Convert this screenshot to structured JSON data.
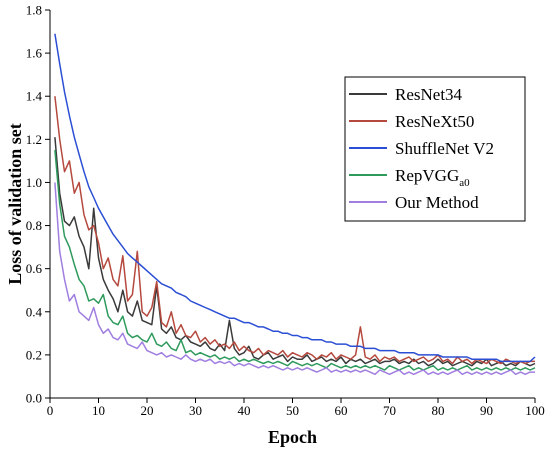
{
  "chart_data": {
    "type": "line",
    "title": "",
    "xlabel": "Epoch",
    "ylabel": "Loss of validation set",
    "xlim": [
      0,
      100
    ],
    "ylim": [
      0,
      1.8
    ],
    "x_ticks": [
      "0",
      "10",
      "20",
      "30",
      "40",
      "50",
      "60",
      "70",
      "80",
      "90",
      "100"
    ],
    "y_ticks": [
      "0.0",
      "0.2",
      "0.4",
      "0.6",
      "0.8",
      "1.0",
      "1.2",
      "1.4",
      "1.6",
      "1.8"
    ],
    "grid": false,
    "legend_position": "right",
    "x": [
      1,
      2,
      3,
      4,
      5,
      6,
      7,
      8,
      9,
      10,
      11,
      12,
      13,
      14,
      15,
      16,
      17,
      18,
      19,
      20,
      21,
      22,
      23,
      24,
      25,
      26,
      27,
      28,
      29,
      30,
      31,
      32,
      33,
      34,
      35,
      36,
      37,
      38,
      39,
      40,
      41,
      42,
      43,
      44,
      45,
      46,
      47,
      48,
      49,
      50,
      51,
      52,
      53,
      54,
      55,
      56,
      57,
      58,
      59,
      60,
      61,
      62,
      63,
      64,
      65,
      66,
      67,
      68,
      69,
      70,
      71,
      72,
      73,
      74,
      75,
      76,
      77,
      78,
      79,
      80,
      81,
      82,
      83,
      84,
      85,
      86,
      87,
      88,
      89,
      90,
      91,
      92,
      93,
      94,
      95,
      96,
      97,
      98,
      99,
      100
    ],
    "series": [
      {
        "name": "ResNet34",
        "label_main": "ResNet34",
        "label_sub": "",
        "color": "#3a3a3a",
        "values": [
          1.21,
          0.95,
          0.82,
          0.8,
          0.84,
          0.75,
          0.7,
          0.6,
          0.88,
          0.65,
          0.55,
          0.5,
          0.46,
          0.4,
          0.5,
          0.4,
          0.38,
          0.45,
          0.36,
          0.35,
          0.34,
          0.52,
          0.32,
          0.3,
          0.33,
          0.28,
          0.27,
          0.29,
          0.26,
          0.25,
          0.24,
          0.26,
          0.23,
          0.22,
          0.25,
          0.22,
          0.36,
          0.23,
          0.2,
          0.21,
          0.24,
          0.19,
          0.18,
          0.2,
          0.21,
          0.18,
          0.19,
          0.2,
          0.17,
          0.19,
          0.18,
          0.18,
          0.2,
          0.17,
          0.18,
          0.19,
          0.17,
          0.18,
          0.17,
          0.19,
          0.16,
          0.18,
          0.17,
          0.18,
          0.16,
          0.17,
          0.18,
          0.16,
          0.17,
          0.17,
          0.18,
          0.16,
          0.17,
          0.16,
          0.18,
          0.16,
          0.17,
          0.15,
          0.16,
          0.18,
          0.16,
          0.17,
          0.15,
          0.16,
          0.17,
          0.16,
          0.15,
          0.17,
          0.16,
          0.18,
          0.15,
          0.16,
          0.17,
          0.15,
          0.16,
          0.15,
          0.17,
          0.16,
          0.15,
          0.16
        ]
      },
      {
        "name": "ResNeXt50",
        "label_main": "ResNeXt50",
        "label_sub": "",
        "color": "#b5493e",
        "values": [
          1.4,
          1.2,
          1.05,
          1.1,
          0.95,
          1.0,
          0.85,
          0.78,
          0.8,
          0.72,
          0.6,
          0.65,
          0.55,
          0.52,
          0.66,
          0.45,
          0.48,
          0.68,
          0.4,
          0.38,
          0.42,
          0.54,
          0.35,
          0.33,
          0.4,
          0.3,
          0.34,
          0.29,
          0.28,
          0.31,
          0.26,
          0.28,
          0.25,
          0.27,
          0.24,
          0.25,
          0.23,
          0.26,
          0.22,
          0.24,
          0.22,
          0.21,
          0.23,
          0.2,
          0.22,
          0.21,
          0.2,
          0.22,
          0.19,
          0.21,
          0.2,
          0.19,
          0.21,
          0.2,
          0.18,
          0.2,
          0.19,
          0.21,
          0.18,
          0.2,
          0.19,
          0.18,
          0.2,
          0.33,
          0.19,
          0.18,
          0.2,
          0.17,
          0.19,
          0.18,
          0.19,
          0.17,
          0.18,
          0.19,
          0.17,
          0.18,
          0.19,
          0.17,
          0.18,
          0.2,
          0.17,
          0.18,
          0.16,
          0.19,
          0.17,
          0.18,
          0.16,
          0.18,
          0.17,
          0.16,
          0.18,
          0.17,
          0.16,
          0.18,
          0.17,
          0.16,
          0.17,
          0.16,
          0.17,
          0.17
        ]
      },
      {
        "name": "ShuffleNet V2",
        "label_main": "ShuffleNet V2",
        "label_sub": "",
        "color": "#2b4fd4",
        "values": [
          1.69,
          1.55,
          1.42,
          1.31,
          1.21,
          1.13,
          1.05,
          0.98,
          0.93,
          0.88,
          0.84,
          0.8,
          0.76,
          0.73,
          0.7,
          0.67,
          0.65,
          0.63,
          0.61,
          0.59,
          0.57,
          0.55,
          0.53,
          0.52,
          0.51,
          0.49,
          0.48,
          0.47,
          0.45,
          0.44,
          0.43,
          0.42,
          0.41,
          0.4,
          0.39,
          0.38,
          0.37,
          0.37,
          0.36,
          0.35,
          0.35,
          0.34,
          0.33,
          0.33,
          0.32,
          0.31,
          0.31,
          0.3,
          0.3,
          0.29,
          0.29,
          0.28,
          0.28,
          0.27,
          0.27,
          0.27,
          0.26,
          0.26,
          0.25,
          0.25,
          0.25,
          0.24,
          0.24,
          0.24,
          0.23,
          0.23,
          0.23,
          0.22,
          0.22,
          0.22,
          0.22,
          0.21,
          0.21,
          0.21,
          0.21,
          0.2,
          0.2,
          0.2,
          0.2,
          0.2,
          0.19,
          0.19,
          0.19,
          0.19,
          0.19,
          0.19,
          0.18,
          0.18,
          0.18,
          0.18,
          0.18,
          0.18,
          0.17,
          0.17,
          0.17,
          0.17,
          0.17,
          0.17,
          0.17,
          0.19
        ]
      },
      {
        "name": "RepVGGa0",
        "label_main": "RepVGG",
        "label_sub": "a0",
        "color": "#2e9a5c",
        "values": [
          1.15,
          0.9,
          0.75,
          0.7,
          0.62,
          0.55,
          0.52,
          0.45,
          0.46,
          0.44,
          0.48,
          0.38,
          0.35,
          0.34,
          0.38,
          0.3,
          0.28,
          0.29,
          0.27,
          0.26,
          0.3,
          0.25,
          0.24,
          0.26,
          0.23,
          0.22,
          0.27,
          0.21,
          0.22,
          0.2,
          0.21,
          0.2,
          0.19,
          0.2,
          0.18,
          0.19,
          0.18,
          0.19,
          0.17,
          0.18,
          0.17,
          0.18,
          0.17,
          0.16,
          0.17,
          0.16,
          0.17,
          0.16,
          0.15,
          0.17,
          0.16,
          0.15,
          0.16,
          0.15,
          0.16,
          0.15,
          0.14,
          0.16,
          0.15,
          0.14,
          0.15,
          0.14,
          0.15,
          0.14,
          0.15,
          0.14,
          0.15,
          0.14,
          0.13,
          0.15,
          0.14,
          0.13,
          0.14,
          0.15,
          0.13,
          0.14,
          0.13,
          0.14,
          0.15,
          0.13,
          0.14,
          0.13,
          0.14,
          0.13,
          0.14,
          0.15,
          0.13,
          0.14,
          0.13,
          0.14,
          0.13,
          0.14,
          0.13,
          0.14,
          0.13,
          0.14,
          0.13,
          0.14,
          0.13,
          0.14
        ]
      },
      {
        "name": "Our Method",
        "label_main": "Our Method",
        "label_sub": "",
        "color": "#a07ee0",
        "values": [
          1.0,
          0.68,
          0.55,
          0.45,
          0.48,
          0.4,
          0.38,
          0.36,
          0.42,
          0.34,
          0.3,
          0.32,
          0.28,
          0.27,
          0.3,
          0.25,
          0.24,
          0.23,
          0.26,
          0.22,
          0.21,
          0.2,
          0.21,
          0.19,
          0.2,
          0.19,
          0.18,
          0.2,
          0.18,
          0.17,
          0.18,
          0.17,
          0.18,
          0.16,
          0.17,
          0.16,
          0.17,
          0.15,
          0.16,
          0.15,
          0.16,
          0.15,
          0.14,
          0.15,
          0.14,
          0.15,
          0.14,
          0.13,
          0.14,
          0.13,
          0.14,
          0.13,
          0.14,
          0.13,
          0.12,
          0.13,
          0.14,
          0.12,
          0.13,
          0.12,
          0.13,
          0.12,
          0.13,
          0.12,
          0.13,
          0.12,
          0.11,
          0.13,
          0.12,
          0.11,
          0.12,
          0.13,
          0.11,
          0.12,
          0.11,
          0.12,
          0.13,
          0.11,
          0.12,
          0.11,
          0.12,
          0.11,
          0.12,
          0.13,
          0.11,
          0.12,
          0.11,
          0.12,
          0.11,
          0.12,
          0.11,
          0.12,
          0.11,
          0.12,
          0.13,
          0.11,
          0.12,
          0.11,
          0.12,
          0.12
        ]
      }
    ]
  }
}
